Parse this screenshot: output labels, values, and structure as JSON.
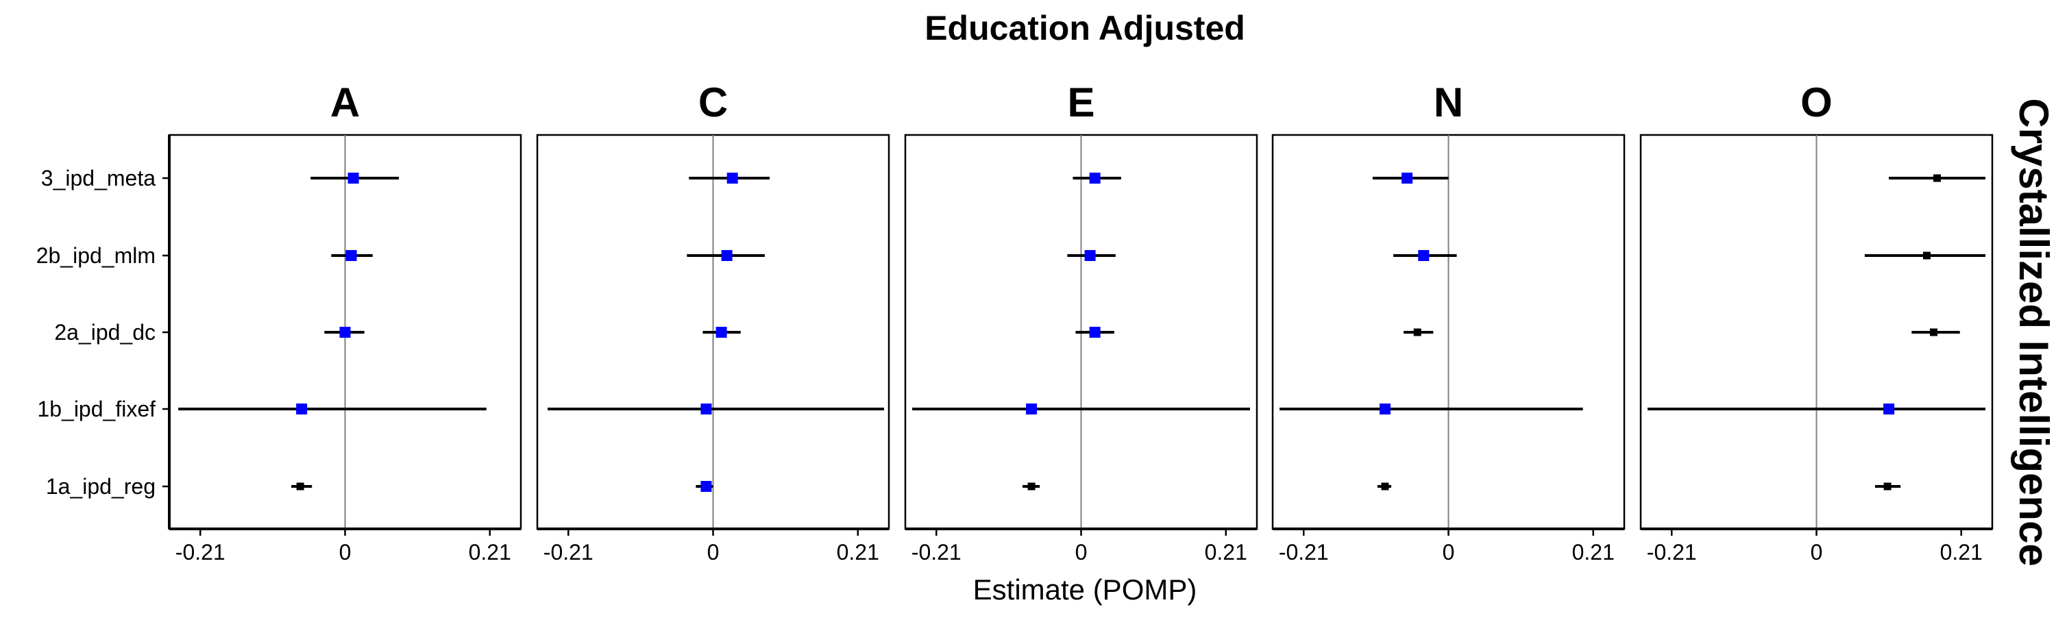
{
  "title": "Education Adjusted",
  "xlabel": "Estimate (POMP)",
  "strip_right": "Crystallized Intelligence",
  "colors": {
    "significant": "#0000ff",
    "nonsignificant": "#000000",
    "zero_line": "#808080",
    "frame": "#000000"
  },
  "chart_data": {
    "type": "forest",
    "title": "Education Adjusted",
    "xlabel": "Estimate (POMP)",
    "ylabel": "",
    "facet_label_right": "Crystallized Intelligence",
    "xlim": [
      -0.255,
      0.255
    ],
    "xticks": [
      -0.21,
      0,
      0.21
    ],
    "xtick_labels": [
      "-0.21",
      "0",
      "0.21"
    ],
    "categories": [
      "3_ipd_meta",
      "2b_ipd_mlm",
      "2a_ipd_dc",
      "1b_ipd_fixef",
      "1a_ipd_reg"
    ],
    "panels": [
      {
        "name": "A",
        "points": [
          {
            "category": "3_ipd_meta",
            "estimate": 0.012,
            "lower": -0.05,
            "upper": 0.078,
            "significant": true
          },
          {
            "category": "2b_ipd_mlm",
            "estimate": 0.009,
            "lower": -0.02,
            "upper": 0.04,
            "significant": true
          },
          {
            "category": "2a_ipd_dc",
            "estimate": 0.0,
            "lower": -0.03,
            "upper": 0.028,
            "significant": true
          },
          {
            "category": "1b_ipd_fixef",
            "estimate": -0.063,
            "lower": -0.242,
            "upper": 0.205,
            "significant": true
          },
          {
            "category": "1a_ipd_reg",
            "estimate": -0.065,
            "lower": -0.078,
            "upper": -0.048,
            "significant": false
          }
        ]
      },
      {
        "name": "C",
        "points": [
          {
            "category": "3_ipd_meta",
            "estimate": 0.028,
            "lower": -0.035,
            "upper": 0.082,
            "significant": true
          },
          {
            "category": "2b_ipd_mlm",
            "estimate": 0.02,
            "lower": -0.038,
            "upper": 0.075,
            "significant": true
          },
          {
            "category": "2a_ipd_dc",
            "estimate": 0.012,
            "lower": -0.015,
            "upper": 0.04,
            "significant": true
          },
          {
            "category": "1b_ipd_fixef",
            "estimate": -0.01,
            "lower": -0.24,
            "upper": 0.248,
            "significant": true
          },
          {
            "category": "1a_ipd_reg",
            "estimate": -0.01,
            "lower": -0.025,
            "upper": 0.0,
            "significant": true
          }
        ]
      },
      {
        "name": "E",
        "points": [
          {
            "category": "3_ipd_meta",
            "estimate": 0.02,
            "lower": -0.012,
            "upper": 0.058,
            "significant": true
          },
          {
            "category": "2b_ipd_mlm",
            "estimate": 0.013,
            "lower": -0.02,
            "upper": 0.05,
            "significant": true
          },
          {
            "category": "2a_ipd_dc",
            "estimate": 0.02,
            "lower": -0.008,
            "upper": 0.048,
            "significant": true
          },
          {
            "category": "1b_ipd_fixef",
            "estimate": -0.072,
            "lower": -0.245,
            "upper": 0.245,
            "significant": true
          },
          {
            "category": "1a_ipd_reg",
            "estimate": -0.072,
            "lower": -0.085,
            "upper": -0.06,
            "significant": false
          }
        ]
      },
      {
        "name": "N",
        "points": [
          {
            "category": "3_ipd_meta",
            "estimate": -0.06,
            "lower": -0.11,
            "upper": 0.0,
            "significant": true
          },
          {
            "category": "2b_ipd_mlm",
            "estimate": -0.036,
            "lower": -0.08,
            "upper": 0.012,
            "significant": true
          },
          {
            "category": "2a_ipd_dc",
            "estimate": -0.045,
            "lower": -0.065,
            "upper": -0.022,
            "significant": false
          },
          {
            "category": "1b_ipd_fixef",
            "estimate": -0.092,
            "lower": -0.245,
            "upper": 0.195,
            "significant": true
          },
          {
            "category": "1a_ipd_reg",
            "estimate": -0.092,
            "lower": -0.103,
            "upper": -0.083,
            "significant": false
          }
        ]
      },
      {
        "name": "O",
        "points": [
          {
            "category": "3_ipd_meta",
            "estimate": 0.175,
            "lower": 0.105,
            "upper": 0.245,
            "significant": false
          },
          {
            "category": "2b_ipd_mlm",
            "estimate": 0.16,
            "lower": 0.07,
            "upper": 0.245,
            "significant": false
          },
          {
            "category": "2a_ipd_dc",
            "estimate": 0.17,
            "lower": 0.138,
            "upper": 0.208,
            "significant": false
          },
          {
            "category": "1b_ipd_fixef",
            "estimate": 0.105,
            "lower": -0.245,
            "upper": 0.245,
            "significant": true
          },
          {
            "category": "1a_ipd_reg",
            "estimate": 0.103,
            "lower": 0.085,
            "upper": 0.122,
            "significant": false
          }
        ]
      }
    ]
  }
}
